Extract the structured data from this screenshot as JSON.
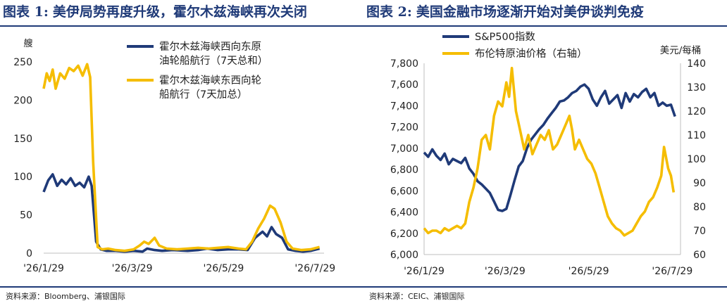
{
  "left": {
    "title_label": "图表 1:",
    "title_text": "美伊局势再度升级，霍尔木兹海峡再次关闭",
    "source": "资料来源：Bloomberg、浦银国际"
  },
  "right": {
    "title_label": "图表 2:",
    "title_text": "美国金融市场逐渐开始对美伊谈判免疫",
    "source": "资料来源：CEIC、浦银国际"
  },
  "chart_data": [
    {
      "type": "line",
      "title": "",
      "ylabel": "艘",
      "ylim": [
        0,
        250
      ],
      "yticks": [
        "0",
        "50",
        "100",
        "150",
        "200",
        "250"
      ],
      "xlim": [
        "2026-01-29",
        "2026-08-04"
      ],
      "xticks": [
        {
          "date": "2026-01-29",
          "label": "'26/1/29"
        },
        {
          "date": "2026-03-29",
          "label": "'26/3/29"
        },
        {
          "date": "2026-05-29",
          "label": "'26/5/29"
        },
        {
          "date": "2026-07-29",
          "label": "'26/7/29"
        }
      ],
      "legend_position": "top-right",
      "series": [
        {
          "name": "霍尔木兹海峡西向东原油轮船航行（7天总和）",
          "color": "#1f3a78",
          "points": [
            [
              "2026-01-29",
              80
            ],
            [
              "2026-02-01",
              95
            ],
            [
              "2026-02-04",
              103
            ],
            [
              "2026-02-07",
              88
            ],
            [
              "2026-02-10",
              96
            ],
            [
              "2026-02-13",
              90
            ],
            [
              "2026-02-16",
              98
            ],
            [
              "2026-02-19",
              88
            ],
            [
              "2026-02-22",
              92
            ],
            [
              "2026-02-25",
              86
            ],
            [
              "2026-02-28",
              100
            ],
            [
              "2026-03-02",
              88
            ],
            [
              "2026-03-05",
              15
            ],
            [
              "2026-03-08",
              5
            ],
            [
              "2026-03-12",
              3
            ],
            [
              "2026-03-18",
              3
            ],
            [
              "2026-03-24",
              2
            ],
            [
              "2026-03-30",
              3
            ],
            [
              "2026-04-05",
              2
            ],
            [
              "2026-04-08",
              6
            ],
            [
              "2026-04-13",
              4
            ],
            [
              "2026-04-18",
              3
            ],
            [
              "2026-04-25",
              4
            ],
            [
              "2026-05-05",
              3
            ],
            [
              "2026-05-12",
              4
            ],
            [
              "2026-05-18",
              6
            ],
            [
              "2026-05-25",
              4
            ],
            [
              "2026-06-01",
              5
            ],
            [
              "2026-06-08",
              5
            ],
            [
              "2026-06-14",
              4
            ],
            [
              "2026-06-19",
              20
            ],
            [
              "2026-06-24",
              28
            ],
            [
              "2026-06-27",
              22
            ],
            [
              "2026-06-30",
              34
            ],
            [
              "2026-07-03",
              25
            ],
            [
              "2026-07-07",
              20
            ],
            [
              "2026-07-11",
              5
            ],
            [
              "2026-07-16",
              3
            ],
            [
              "2026-07-21",
              2
            ],
            [
              "2026-07-26",
              3
            ],
            [
              "2026-08-01",
              6
            ]
          ]
        },
        {
          "name": "霍尔木兹海峡东西向轮船航行（7天加总）",
          "color": "#f5bd00",
          "points": [
            [
              "2026-01-29",
              215
            ],
            [
              "2026-01-31",
              235
            ],
            [
              "2026-02-02",
              225
            ],
            [
              "2026-02-04",
              240
            ],
            [
              "2026-02-06",
              215
            ],
            [
              "2026-02-09",
              235
            ],
            [
              "2026-02-12",
              228
            ],
            [
              "2026-02-15",
              242
            ],
            [
              "2026-02-18",
              238
            ],
            [
              "2026-02-21",
              245
            ],
            [
              "2026-02-24",
              232
            ],
            [
              "2026-02-27",
              247
            ],
            [
              "2026-03-01",
              230
            ],
            [
              "2026-03-03",
              120
            ],
            [
              "2026-03-06",
              8
            ],
            [
              "2026-03-09",
              5
            ],
            [
              "2026-03-13",
              6
            ],
            [
              "2026-03-18",
              4
            ],
            [
              "2026-03-24",
              3
            ],
            [
              "2026-03-30",
              5
            ],
            [
              "2026-04-03",
              10
            ],
            [
              "2026-04-06",
              15
            ],
            [
              "2026-04-09",
              12
            ],
            [
              "2026-04-13",
              20
            ],
            [
              "2026-04-16",
              10
            ],
            [
              "2026-04-21",
              6
            ],
            [
              "2026-04-28",
              5
            ],
            [
              "2026-05-05",
              6
            ],
            [
              "2026-05-12",
              7
            ],
            [
              "2026-05-19",
              6
            ],
            [
              "2026-05-25",
              7
            ],
            [
              "2026-06-01",
              8
            ],
            [
              "2026-06-08",
              6
            ],
            [
              "2026-06-13",
              5
            ],
            [
              "2026-06-17",
              15
            ],
            [
              "2026-06-21",
              32
            ],
            [
              "2026-06-25",
              45
            ],
            [
              "2026-06-29",
              62
            ],
            [
              "2026-07-02",
              58
            ],
            [
              "2026-07-06",
              40
            ],
            [
              "2026-07-10",
              15
            ],
            [
              "2026-07-14",
              6
            ],
            [
              "2026-07-20",
              4
            ],
            [
              "2026-07-26",
              5
            ],
            [
              "2026-08-01",
              8
            ]
          ]
        }
      ]
    },
    {
      "type": "line",
      "title": "",
      "ylabel_right": "美元/每桶",
      "ylim_left": [
        6000,
        7800
      ],
      "ylim_right": [
        60,
        140
      ],
      "yticks_left": [
        "6,000",
        "6,200",
        "6,400",
        "6,600",
        "6,800",
        "7,000",
        "7,200",
        "7,400",
        "7,600",
        "7,800"
      ],
      "yticks_right": [
        "60",
        "70",
        "80",
        "90",
        "100",
        "110",
        "120",
        "130",
        "140"
      ],
      "xlim": [
        "2026-01-29",
        "2026-08-04"
      ],
      "xticks": [
        {
          "date": "2026-01-29",
          "label": "'26/1/29"
        },
        {
          "date": "2026-03-29",
          "label": "'26/3/29"
        },
        {
          "date": "2026-05-29",
          "label": "'26/5/29"
        },
        {
          "date": "2026-07-29",
          "label": "'26/7/29"
        }
      ],
      "legend_position": "top-left",
      "series": [
        {
          "name": "S&P500指数",
          "color": "#1f3a78",
          "axis": "left",
          "points": [
            [
              "2026-01-29",
              6960
            ],
            [
              "2026-02-01",
              6920
            ],
            [
              "2026-02-04",
              6990
            ],
            [
              "2026-02-07",
              6930
            ],
            [
              "2026-02-10",
              6890
            ],
            [
              "2026-02-13",
              6950
            ],
            [
              "2026-02-16",
              6850
            ],
            [
              "2026-02-19",
              6900
            ],
            [
              "2026-02-22",
              6880
            ],
            [
              "2026-02-25",
              6860
            ],
            [
              "2026-02-28",
              6910
            ],
            [
              "2026-03-03",
              6810
            ],
            [
              "2026-03-06",
              6760
            ],
            [
              "2026-03-09",
              6690
            ],
            [
              "2026-03-12",
              6660
            ],
            [
              "2026-03-15",
              6620
            ],
            [
              "2026-03-18",
              6580
            ],
            [
              "2026-03-21",
              6500
            ],
            [
              "2026-03-24",
              6420
            ],
            [
              "2026-03-27",
              6410
            ],
            [
              "2026-03-30",
              6430
            ],
            [
              "2026-04-02",
              6560
            ],
            [
              "2026-04-05",
              6700
            ],
            [
              "2026-04-08",
              6830
            ],
            [
              "2026-04-11",
              6880
            ],
            [
              "2026-04-14",
              7000
            ],
            [
              "2026-04-17",
              7080
            ],
            [
              "2026-04-20",
              7130
            ],
            [
              "2026-04-23",
              7180
            ],
            [
              "2026-04-26",
              7220
            ],
            [
              "2026-04-29",
              7280
            ],
            [
              "2026-05-02",
              7330
            ],
            [
              "2026-05-05",
              7380
            ],
            [
              "2026-05-08",
              7440
            ],
            [
              "2026-05-11",
              7450
            ],
            [
              "2026-05-14",
              7480
            ],
            [
              "2026-05-17",
              7520
            ],
            [
              "2026-05-20",
              7540
            ],
            [
              "2026-05-23",
              7580
            ],
            [
              "2026-05-26",
              7600
            ],
            [
              "2026-05-29",
              7560
            ],
            [
              "2026-06-01",
              7460
            ],
            [
              "2026-06-04",
              7400
            ],
            [
              "2026-06-07",
              7480
            ],
            [
              "2026-06-10",
              7540
            ],
            [
              "2026-06-13",
              7420
            ],
            [
              "2026-06-16",
              7460
            ],
            [
              "2026-06-19",
              7500
            ],
            [
              "2026-06-22",
              7380
            ],
            [
              "2026-06-25",
              7520
            ],
            [
              "2026-06-28",
              7440
            ],
            [
              "2026-07-01",
              7510
            ],
            [
              "2026-07-04",
              7480
            ],
            [
              "2026-07-07",
              7530
            ],
            [
              "2026-07-10",
              7560
            ],
            [
              "2026-07-13",
              7480
            ],
            [
              "2026-07-16",
              7520
            ],
            [
              "2026-07-19",
              7400
            ],
            [
              "2026-07-22",
              7430
            ],
            [
              "2026-07-25",
              7400
            ],
            [
              "2026-07-28",
              7410
            ],
            [
              "2026-07-31",
              7300
            ]
          ]
        },
        {
          "name": "布伦特原油价格（右轴）",
          "color": "#f5bd00",
          "axis": "right",
          "points": [
            [
              "2026-01-29",
              71
            ],
            [
              "2026-02-01",
              69
            ],
            [
              "2026-02-04",
              70
            ],
            [
              "2026-02-07",
              70
            ],
            [
              "2026-02-10",
              69
            ],
            [
              "2026-02-13",
              71
            ],
            [
              "2026-02-16",
              70
            ],
            [
              "2026-02-19",
              71
            ],
            [
              "2026-02-22",
              72
            ],
            [
              "2026-02-25",
              71
            ],
            [
              "2026-02-28",
              73
            ],
            [
              "2026-03-03",
              82
            ],
            [
              "2026-03-06",
              88
            ],
            [
              "2026-03-09",
              96
            ],
            [
              "2026-03-12",
              108
            ],
            [
              "2026-03-15",
              110
            ],
            [
              "2026-03-18",
              104
            ],
            [
              "2026-03-21",
              118
            ],
            [
              "2026-03-24",
              124
            ],
            [
              "2026-03-27",
              122
            ],
            [
              "2026-03-30",
              132
            ],
            [
              "2026-04-01",
              126
            ],
            [
              "2026-04-03",
              138
            ],
            [
              "2026-04-06",
              120
            ],
            [
              "2026-04-09",
              112
            ],
            [
              "2026-04-12",
              104
            ],
            [
              "2026-04-15",
              110
            ],
            [
              "2026-04-18",
              102
            ],
            [
              "2026-04-21",
              106
            ],
            [
              "2026-04-24",
              110
            ],
            [
              "2026-04-27",
              108
            ],
            [
              "2026-04-30",
              112
            ],
            [
              "2026-05-03",
              104
            ],
            [
              "2026-05-06",
              106
            ],
            [
              "2026-05-09",
              110
            ],
            [
              "2026-05-12",
              114
            ],
            [
              "2026-05-15",
              118
            ],
            [
              "2026-05-17",
              112
            ],
            [
              "2026-05-19",
              104
            ],
            [
              "2026-05-22",
              108
            ],
            [
              "2026-05-25",
              104
            ],
            [
              "2026-05-28",
              100
            ],
            [
              "2026-05-31",
              98
            ],
            [
              "2026-06-03",
              94
            ],
            [
              "2026-06-06",
              88
            ],
            [
              "2026-06-09",
              82
            ],
            [
              "2026-06-12",
              76
            ],
            [
              "2026-06-15",
              73
            ],
            [
              "2026-06-18",
              71
            ],
            [
              "2026-06-21",
              70
            ],
            [
              "2026-06-24",
              68
            ],
            [
              "2026-06-27",
              69
            ],
            [
              "2026-06-30",
              70
            ],
            [
              "2026-07-03",
              73
            ],
            [
              "2026-07-06",
              76
            ],
            [
              "2026-07-09",
              78
            ],
            [
              "2026-07-12",
              82
            ],
            [
              "2026-07-15",
              84
            ],
            [
              "2026-07-18",
              88
            ],
            [
              "2026-07-21",
              93
            ],
            [
              "2026-07-23",
              105
            ],
            [
              "2026-07-26",
              96
            ],
            [
              "2026-07-28",
              93
            ],
            [
              "2026-07-30",
              86
            ]
          ]
        }
      ]
    }
  ]
}
